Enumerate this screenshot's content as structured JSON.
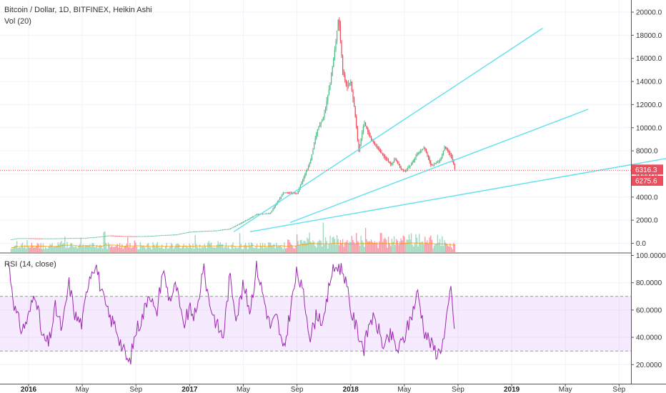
{
  "legend": {
    "main": "Bitcoin / Dollar, 1D, BITFINEX, Heikin Ashi",
    "volume": "Vol (20)",
    "rsi": "RSI (14, close)"
  },
  "colors": {
    "up": "#53b987",
    "down": "#eb4d5c",
    "trendline": "#5ee0ee",
    "rsi_line": "#9c27b0",
    "rsi_band": "#9915ff",
    "volume_ma": "#ff9800",
    "price_line": "#f7525f"
  },
  "price_axis": {
    "ticks": [
      "20000.0",
      "18000.0",
      "16000.0",
      "14000.0",
      "12000.0",
      "10000.0",
      "8000.0",
      "6000.0",
      "4000.0",
      "2000.0",
      "0.0"
    ]
  },
  "rsi_axis": {
    "ticks": [
      "100.0000",
      "80.0000",
      "60.0000",
      "40.0000",
      "20.0000"
    ]
  },
  "time_axis": {
    "ticks": [
      "2016",
      "May",
      "Sep",
      "2017",
      "May",
      "Sep",
      "2018",
      "May",
      "Sep",
      "2019",
      "May",
      "Sep"
    ]
  },
  "price_labels": [
    {
      "text": "6316.3",
      "value": 6316.3,
      "color": "#eb4d5c"
    },
    {
      "text": "6275.6",
      "value": 6275.6,
      "color": "#eb4d5c"
    }
  ],
  "chart_data": [
    {
      "type": "line",
      "title": "Bitcoin / Dollar, 1D, BITFINEX, Heikin Ashi",
      "x_unit": "months since Jan 2016",
      "ylim": [
        -500,
        20500
      ],
      "series": [
        {
          "name": "Bitcoin / Dollar",
          "x": [
            -1.3,
            -0.8,
            0,
            1,
            2,
            3,
            4,
            5,
            6,
            7,
            8,
            9,
            10,
            11,
            12,
            13,
            14,
            15,
            16,
            17,
            18,
            19,
            20,
            20.5,
            21,
            21.5,
            22,
            22.5,
            22.9,
            23.1,
            23.4,
            23.7,
            24,
            24.3,
            24.6,
            25,
            25.5,
            26,
            26.5,
            27,
            27.3,
            27.7,
            28,
            28.5,
            29,
            29.5,
            30,
            30.3,
            30.7,
            31,
            31.5,
            31.8
          ],
          "values": [
            330,
            430,
            430,
            410,
            420,
            440,
            450,
            530,
            670,
            610,
            600,
            620,
            700,
            750,
            980,
            1050,
            1100,
            1250,
            1850,
            2500,
            2600,
            4400,
            4300,
            5700,
            7100,
            9800,
            11000,
            14000,
            17500,
            19700,
            15000,
            13500,
            14000,
            11500,
            8000,
            10500,
            9000,
            8200,
            7500,
            6800,
            7300,
            6500,
            6200,
            6800,
            7800,
            8300,
            6700,
            6900,
            7200,
            8400,
            7500,
            6300
          ]
        },
        {
          "name": "trendline 1",
          "x": [
            15.3,
            38.3
          ],
          "values": [
            1000,
            18600
          ]
        },
        {
          "name": "trendline 2",
          "x": [
            19.5,
            41.7
          ],
          "values": [
            1800,
            11600
          ]
        },
        {
          "name": "trendline 3",
          "x": [
            16.5,
            48.3
          ],
          "values": [
            1000,
            7500
          ]
        }
      ]
    },
    {
      "type": "line",
      "title": "RSI (14, close)",
      "x_unit": "months since Jan 2016",
      "ylim": [
        15,
        100
      ],
      "band": [
        30,
        70
      ],
      "series": [
        {
          "name": "RSI",
          "x": [
            -1.5,
            -1,
            -0.5,
            0,
            0.5,
            1,
            1.5,
            2,
            2.5,
            3,
            3.5,
            4,
            4.5,
            5,
            5.5,
            6,
            6.5,
            7,
            7.5,
            8,
            8.5,
            9,
            9.5,
            10,
            10.5,
            11,
            11.5,
            12,
            12.5,
            13,
            13.5,
            14,
            14.5,
            15,
            15.5,
            16,
            16.5,
            17,
            17.5,
            18,
            18.5,
            19,
            19.5,
            20,
            20.5,
            21,
            21.5,
            22,
            22.5,
            23,
            23.5,
            24,
            24.5,
            25,
            25.5,
            26,
            26.5,
            27,
            27.5,
            28,
            28.5,
            29,
            29.5,
            30,
            30.5,
            31,
            31.5,
            31.8
          ],
          "values": [
            95,
            60,
            45,
            55,
            75,
            40,
            35,
            62,
            45,
            80,
            55,
            50,
            85,
            95,
            70,
            55,
            48,
            32,
            20,
            45,
            55,
            75,
            55,
            90,
            68,
            78,
            48,
            60,
            55,
            92,
            65,
            50,
            40,
            85,
            55,
            78,
            60,
            92,
            70,
            48,
            55,
            28,
            60,
            88,
            70,
            40,
            58,
            50,
            85,
            93,
            88,
            60,
            45,
            32,
            55,
            48,
            32,
            42,
            30,
            40,
            55,
            73,
            45,
            35,
            28,
            40,
            80,
            29
          ]
        }
      ]
    }
  ]
}
